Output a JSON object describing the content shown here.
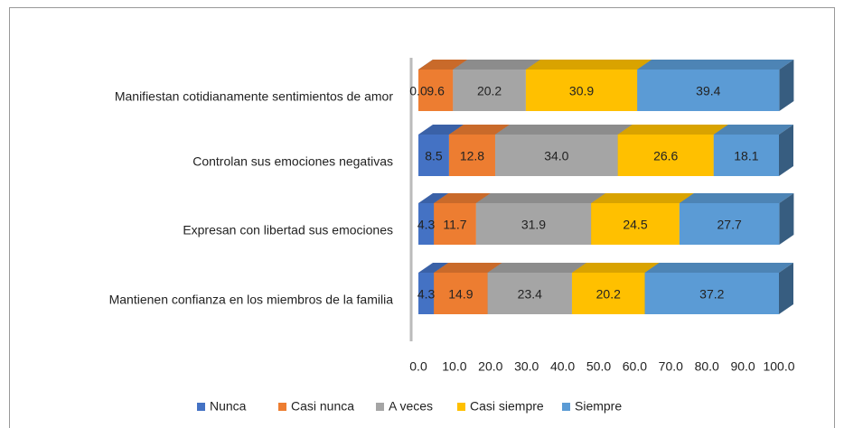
{
  "chart_data": {
    "type": "bar3d_stacked_horizontal",
    "categories": [
      "Manifiestan cotidianamente sentimientos de amor",
      "Controlan sus emociones negativas",
      "Expresan con libertad sus emociones",
      "Mantienen confianza en los miembros de la familia"
    ],
    "series": [
      {
        "name": "Nunca",
        "color": "#4472c4",
        "values": [
          0.0,
          8.5,
          4.3,
          4.3
        ],
        "value_labels": [
          "0.0",
          "8.5",
          "4.3",
          "4.3"
        ]
      },
      {
        "name": "Casi nunca",
        "color": "#ed7d31",
        "values": [
          9.6,
          12.8,
          11.7,
          14.9
        ],
        "value_labels": [
          "9.6",
          "12.8",
          "11.7",
          "14.9"
        ]
      },
      {
        "name": "A veces",
        "color": "#a5a5a5",
        "values": [
          20.2,
          34.0,
          31.9,
          23.4
        ],
        "value_labels": [
          "20.2",
          "34.0",
          "31.9",
          "23.4"
        ]
      },
      {
        "name": "Casi siempre",
        "color": "#ffc000",
        "values": [
          30.9,
          26.6,
          24.5,
          20.2
        ],
        "value_labels": [
          "30.9",
          "26.6",
          "24.5",
          "20.2"
        ]
      },
      {
        "name": "Siempre",
        "color": "#5b9bd5",
        "values": [
          39.4,
          18.1,
          27.7,
          37.2
        ],
        "value_labels": [
          "39.4",
          "18.1",
          "27.7",
          "37.2"
        ]
      }
    ],
    "xlim": [
      0,
      100
    ],
    "xticks": [
      {
        "value": 0,
        "label": "0.0"
      },
      {
        "value": 10,
        "label": "10.0"
      },
      {
        "value": 20,
        "label": "20.0"
      },
      {
        "value": 30,
        "label": "30.0"
      },
      {
        "value": 40,
        "label": "40.0"
      },
      {
        "value": 50,
        "label": "50.0"
      },
      {
        "value": 60,
        "label": "60.0"
      },
      {
        "value": 70,
        "label": "70.0"
      },
      {
        "value": 80,
        "label": "80.0"
      },
      {
        "value": 90,
        "label": "90.0"
      },
      {
        "value": 100,
        "label": "100.0"
      }
    ],
    "legend": "bottom"
  }
}
